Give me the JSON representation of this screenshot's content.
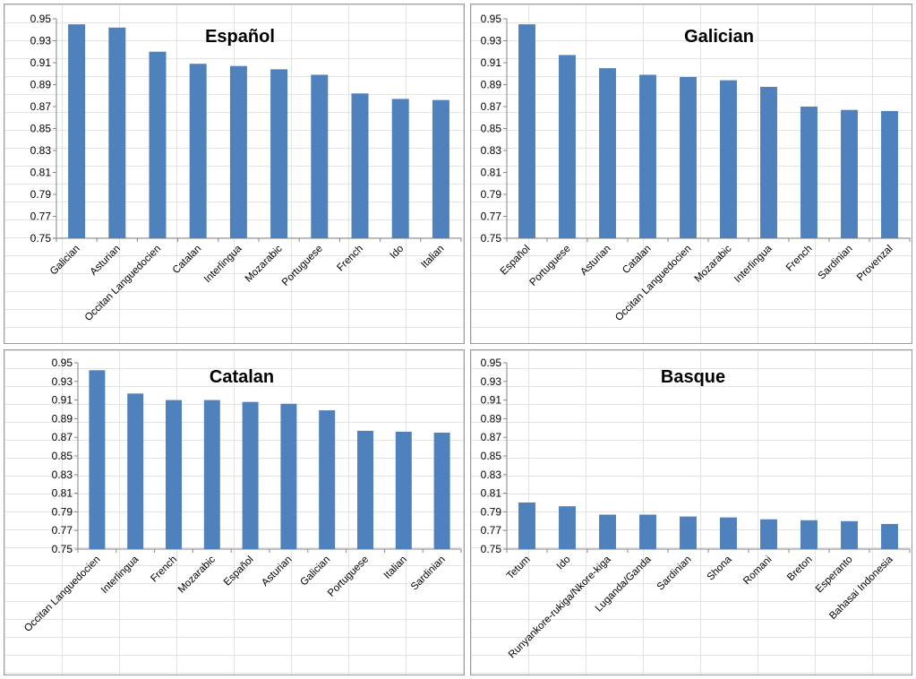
{
  "chart_data": [
    {
      "type": "bar",
      "title": "Español",
      "categories": [
        "Galician",
        "Asturian",
        "Occitan Languedocien",
        "Catalan",
        "Interlingua",
        "Mozarabic",
        "Portuguese",
        "French",
        "Ido",
        "Italian"
      ],
      "values": [
        0.945,
        0.942,
        0.92,
        0.909,
        0.907,
        0.904,
        0.899,
        0.882,
        0.877,
        0.876
      ],
      "ylim": [
        0.75,
        0.95
      ],
      "yticks": [
        "0.95",
        "0.93",
        "0.91",
        "0.89",
        "0.87",
        "0.85",
        "0.83",
        "0.81",
        "0.79",
        "0.77",
        "0.75"
      ],
      "color": "#4f81bd",
      "grid": false,
      "legend": "none"
    },
    {
      "type": "bar",
      "title": "Galician",
      "categories": [
        "Español",
        "Portuguese",
        "Asturian",
        "Catalan",
        "Occitan Languedocien",
        "Mozarabic",
        "Interlingua",
        "French",
        "Sardinian",
        "Provenzal"
      ],
      "values": [
        0.945,
        0.917,
        0.905,
        0.899,
        0.897,
        0.894,
        0.888,
        0.87,
        0.867,
        0.866
      ],
      "ylim": [
        0.75,
        0.95
      ],
      "yticks": [
        "0.95",
        "0.93",
        "0.91",
        "0.89",
        "0.87",
        "0.85",
        "0.83",
        "0.81",
        "0.79",
        "0.77",
        "0.75"
      ],
      "color": "#4f81bd",
      "grid": false,
      "legend": "none"
    },
    {
      "type": "bar",
      "title": "Catalan",
      "categories": [
        "Occitan Languedocien",
        "Interlingua",
        "French",
        "Mozarabic",
        "Español",
        "Asturian",
        "Galician",
        "Portuguese",
        "Italian",
        "Sardinian"
      ],
      "values": [
        0.942,
        0.917,
        0.91,
        0.91,
        0.908,
        0.906,
        0.899,
        0.877,
        0.876,
        0.875
      ],
      "ylim": [
        0.75,
        0.95
      ],
      "yticks": [
        "0.95",
        "0.93",
        "0.91",
        "0.89",
        "0.87",
        "0.85",
        "0.83",
        "0.81",
        "0.79",
        "0.77",
        "0.75"
      ],
      "color": "#4f81bd",
      "grid": false,
      "legend": "none"
    },
    {
      "type": "bar",
      "title": "Basque",
      "categories": [
        "Tetum",
        "Ido",
        "Runyankore-rukiga/Nkore-kiga",
        "Luganda/Ganda",
        "Sardinian",
        "Shona",
        "Romani",
        "Breton",
        "Esperanto",
        "Bahasai Indonesia"
      ],
      "values": [
        0.8,
        0.796,
        0.787,
        0.787,
        0.785,
        0.784,
        0.782,
        0.781,
        0.78,
        0.777
      ],
      "ylim": [
        0.75,
        0.95
      ],
      "yticks": [
        "0.95",
        "0.93",
        "0.91",
        "0.89",
        "0.87",
        "0.85",
        "0.83",
        "0.81",
        "0.79",
        "0.77",
        "0.75"
      ],
      "color": "#4f81bd",
      "grid": false,
      "legend": "none"
    }
  ]
}
